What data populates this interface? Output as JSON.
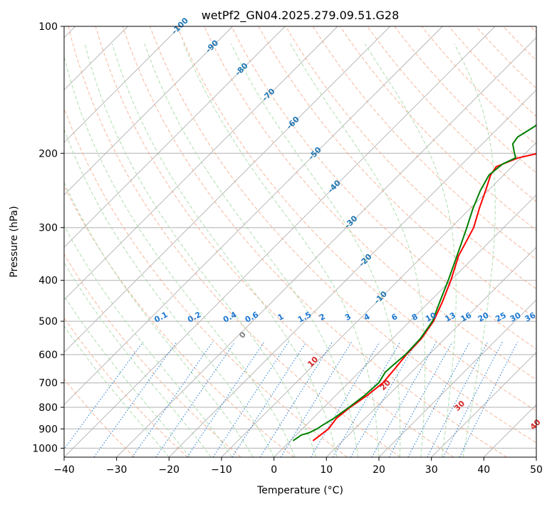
{
  "chart_data": {
    "type": "line",
    "title": "wetPf2_GN04.2025.279.09.51.G28",
    "xlabel": "Temperature (°C)",
    "ylabel": "Pressure (hPa)",
    "xlim": [
      -40,
      50
    ],
    "ylim": [
      1050,
      100
    ],
    "x_ticks": [
      -40,
      -30,
      -20,
      -10,
      0,
      10,
      20,
      30,
      40,
      50
    ],
    "y_ticks": [
      100,
      200,
      300,
      400,
      500,
      600,
      700,
      800,
      900,
      1000
    ],
    "grid": true,
    "skew_labels": [
      "-100",
      "-90",
      "-80",
      "-70",
      "-60",
      "-50",
      "-40",
      "-30",
      "-20",
      "-10"
    ],
    "mixing_ratio_labels": [
      "0.1",
      "0.2",
      "0.4",
      "0.6",
      "1",
      "1.5",
      "2",
      "3",
      "4",
      "6",
      "8",
      "10",
      "13",
      "16",
      "20",
      "25",
      "30",
      "36"
    ],
    "dry_adiabat_labels": [
      "0",
      "10",
      "20",
      "30",
      "40"
    ],
    "colors": {
      "temperature": "#ff0000",
      "dewpoint": "#008000",
      "grid": "#b0b0b0",
      "dry_adiabat": "#f4a582",
      "moist_adiabat": "#a6d9a6",
      "mixing_ratio": "#1f78d1",
      "skew_label": "#1f77b4",
      "adiabat_label": "#d62728"
    },
    "series": [
      {
        "name": "Temperature",
        "color": "#ff0000",
        "points": [
          [
            4.3,
            960
          ],
          [
            5,
            900
          ],
          [
            4.5,
            850
          ],
          [
            5,
            800
          ],
          [
            6,
            750
          ],
          [
            6.6,
            700
          ],
          [
            6.2,
            650
          ],
          [
            5.7,
            600
          ],
          [
            5.5,
            550
          ],
          [
            4.5,
            500
          ],
          [
            2.5,
            450
          ],
          [
            0,
            400
          ],
          [
            -3.2,
            350
          ],
          [
            -5.7,
            300
          ],
          [
            -8.3,
            270
          ],
          [
            -10.5,
            245
          ],
          [
            -12.5,
            225
          ],
          [
            -13,
            215
          ],
          [
            -10.5,
            205
          ],
          [
            -4.5,
            195
          ],
          [
            2.5,
            185
          ],
          [
            8.5,
            170
          ],
          [
            14.5,
            150
          ],
          [
            22.8,
            130
          ],
          [
            31,
            115
          ],
          [
            36.5,
            100
          ]
        ]
      },
      {
        "name": "Dewpoint",
        "color": "#008000",
        "points": [
          [
            0.5,
            960
          ],
          [
            1,
            930
          ],
          [
            2,
            920
          ],
          [
            2.8,
            900
          ],
          [
            3.2,
            880
          ],
          [
            4,
            850
          ],
          [
            4.8,
            800
          ],
          [
            5.5,
            750
          ],
          [
            5.8,
            700
          ],
          [
            5,
            660
          ],
          [
            5.2,
            630
          ],
          [
            5.5,
            600
          ],
          [
            5.3,
            550
          ],
          [
            4.3,
            500
          ],
          [
            2,
            450
          ],
          [
            -0.5,
            400
          ],
          [
            -3.5,
            350
          ],
          [
            -7,
            300
          ],
          [
            -9.5,
            270
          ],
          [
            -11.5,
            245
          ],
          [
            -12.8,
            225
          ],
          [
            -12.3,
            212
          ],
          [
            -11,
            205
          ],
          [
            -12.5,
            198
          ],
          [
            -14.2,
            190
          ],
          [
            -14.6,
            183
          ],
          [
            -13.4,
            173
          ],
          [
            -12.3,
            160
          ],
          [
            -10.3,
            145
          ],
          [
            -7.3,
            128
          ],
          [
            -4.3,
            115
          ],
          [
            -1.1,
            106
          ],
          [
            1,
            100
          ]
        ]
      }
    ]
  }
}
